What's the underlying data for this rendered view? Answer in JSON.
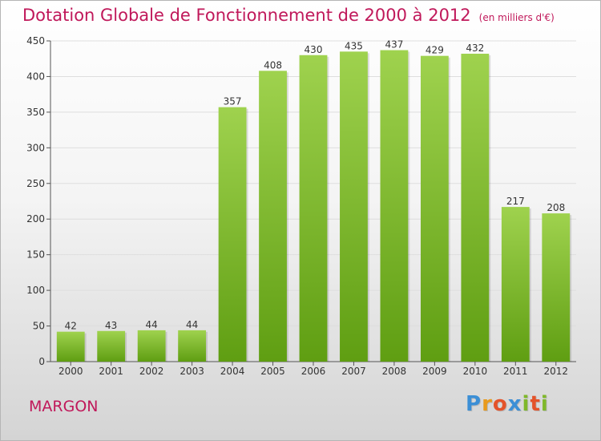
{
  "chart_data": {
    "type": "bar",
    "title": "Dotation Globale de Fonctionnement de 2000 à 2012",
    "subtitle": "(en milliers d'€)",
    "categories": [
      "2000",
      "2001",
      "2002",
      "2003",
      "2004",
      "2005",
      "2006",
      "2007",
      "2008",
      "2009",
      "2010",
      "2011",
      "2012"
    ],
    "values": [
      42,
      43,
      44,
      44,
      357,
      408,
      430,
      435,
      437,
      429,
      432,
      217,
      208
    ],
    "ylim": [
      0,
      450
    ],
    "yticks": [
      0,
      50,
      100,
      150,
      200,
      250,
      300,
      350,
      400,
      450
    ],
    "grid": true,
    "legend": "none",
    "bar_color_top": "#9fd24e",
    "bar_color_bottom": "#5f9e12"
  },
  "footer": {
    "commune": "MARGON",
    "brand": "Proxiti",
    "brand_colors": [
      "#3c8fd6",
      "#e89a1c",
      "#e4532a",
      "#3c8fd6",
      "#7fb82a",
      "#e4532a",
      "#7fb82a"
    ]
  }
}
